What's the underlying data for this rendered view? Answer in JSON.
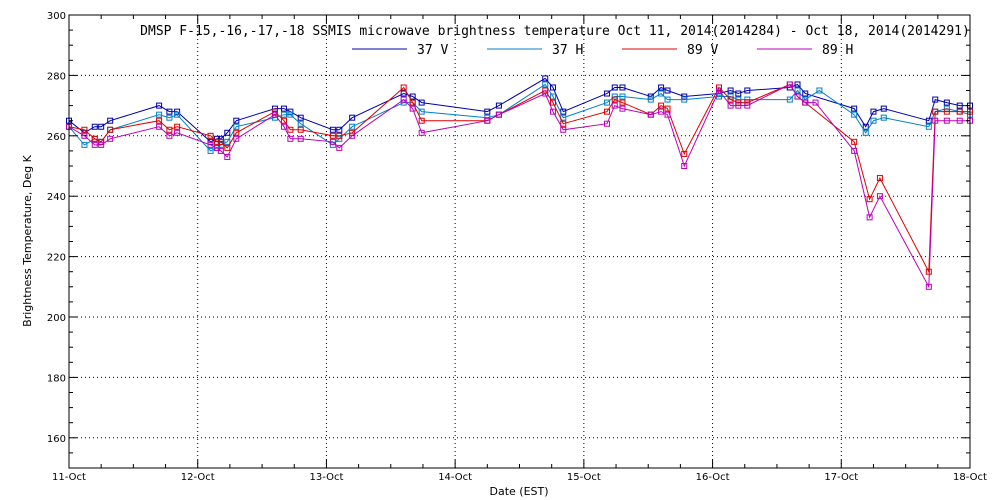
{
  "chart_data": {
    "type": "line",
    "title": "DMSP F-15,-16,-17,-18 SSMIS microwave brightness temperature Oct 11, 2014(2014284) - Oct 18, 2014(2014291)",
    "xlabel": "Date (EST)",
    "ylabel": "Brightness Temperature, Deg K",
    "xlim": [
      11.0,
      18.0
    ],
    "ylim": [
      150,
      300
    ],
    "x_ticks": [
      {
        "value": 11,
        "label": "11-Oct"
      },
      {
        "value": 12,
        "label": "12-Oct"
      },
      {
        "value": 13,
        "label": "13-Oct"
      },
      {
        "value": 14,
        "label": "14-Oct"
      },
      {
        "value": 15,
        "label": "15-Oct"
      },
      {
        "value": 16,
        "label": "16-Oct"
      },
      {
        "value": 17,
        "label": "17-Oct"
      },
      {
        "value": 18,
        "label": "18-Oct"
      }
    ],
    "y_ticks": [
      160,
      180,
      200,
      220,
      240,
      260,
      280,
      300
    ],
    "grid": true,
    "legend_position": "top-center",
    "series": [
      {
        "name": "37 V",
        "color": "#0000aa",
        "points": [
          [
            11.0,
            265
          ],
          [
            11.12,
            261
          ],
          [
            11.2,
            263
          ],
          [
            11.25,
            263
          ],
          [
            11.32,
            265
          ],
          [
            11.7,
            270
          ],
          [
            11.78,
            268
          ],
          [
            11.84,
            268
          ],
          [
            12.1,
            258
          ],
          [
            12.15,
            259
          ],
          [
            12.18,
            259
          ],
          [
            12.23,
            261
          ],
          [
            12.3,
            265
          ],
          [
            12.6,
            269
          ],
          [
            12.67,
            269
          ],
          [
            12.72,
            268
          ],
          [
            12.8,
            266
          ],
          [
            13.05,
            262
          ],
          [
            13.1,
            262
          ],
          [
            13.2,
            266
          ],
          [
            13.6,
            274
          ],
          [
            13.67,
            273
          ],
          [
            13.74,
            271
          ],
          [
            14.25,
            268
          ],
          [
            14.34,
            270
          ],
          [
            14.7,
            279
          ],
          [
            14.76,
            276
          ],
          [
            14.84,
            268
          ],
          [
            15.18,
            274
          ],
          [
            15.24,
            276
          ],
          [
            15.3,
            276
          ],
          [
            15.52,
            273
          ],
          [
            15.6,
            276
          ],
          [
            15.65,
            275
          ],
          [
            15.78,
            273
          ],
          [
            16.05,
            274
          ],
          [
            16.14,
            275
          ],
          [
            16.2,
            274
          ],
          [
            16.27,
            275
          ],
          [
            16.6,
            276
          ],
          [
            16.66,
            277
          ],
          [
            16.72,
            274
          ],
          [
            17.1,
            269
          ],
          [
            17.19,
            263
          ],
          [
            17.25,
            268
          ],
          [
            17.33,
            269
          ],
          [
            17.68,
            265
          ],
          [
            17.73,
            272
          ],
          [
            17.82,
            271
          ],
          [
            17.92,
            270
          ],
          [
            18.0,
            270
          ]
        ]
      },
      {
        "name": "37 H",
        "color": "#0080c8",
        "points": [
          [
            11.0,
            263
          ],
          [
            11.12,
            257
          ],
          [
            11.2,
            259
          ],
          [
            11.25,
            258
          ],
          [
            11.32,
            262
          ],
          [
            11.7,
            267
          ],
          [
            11.78,
            266
          ],
          [
            11.84,
            267
          ],
          [
            12.1,
            255
          ],
          [
            12.15,
            256
          ],
          [
            12.18,
            257
          ],
          [
            12.23,
            258
          ],
          [
            12.3,
            263
          ],
          [
            12.6,
            266
          ],
          [
            12.67,
            267
          ],
          [
            12.72,
            267
          ],
          [
            12.8,
            264
          ],
          [
            13.05,
            257
          ],
          [
            13.1,
            259
          ],
          [
            13.2,
            263
          ],
          [
            13.6,
            271
          ],
          [
            13.67,
            271
          ],
          [
            13.74,
            268
          ],
          [
            14.25,
            266
          ],
          [
            14.34,
            267
          ],
          [
            14.7,
            277
          ],
          [
            14.76,
            273
          ],
          [
            14.84,
            266
          ],
          [
            15.18,
            271
          ],
          [
            15.24,
            273
          ],
          [
            15.3,
            273
          ],
          [
            15.52,
            272
          ],
          [
            15.6,
            274
          ],
          [
            15.65,
            272
          ],
          [
            15.78,
            272
          ],
          [
            16.05,
            273
          ],
          [
            16.14,
            273
          ],
          [
            16.2,
            272
          ],
          [
            16.27,
            272
          ],
          [
            16.6,
            272
          ],
          [
            16.66,
            275
          ],
          [
            16.72,
            272
          ],
          [
            16.83,
            275
          ],
          [
            17.1,
            267
          ],
          [
            17.19,
            261
          ],
          [
            17.25,
            265
          ],
          [
            17.33,
            266
          ],
          [
            17.68,
            263
          ],
          [
            17.73,
            268
          ],
          [
            17.82,
            269
          ],
          [
            17.92,
            268
          ],
          [
            18.0,
            267
          ]
        ]
      },
      {
        "name": "89 V",
        "color": "#dd0000",
        "points": [
          [
            11.0,
            263
          ],
          [
            11.12,
            262
          ],
          [
            11.2,
            259
          ],
          [
            11.25,
            258
          ],
          [
            11.32,
            262
          ],
          [
            11.7,
            265
          ],
          [
            11.78,
            262
          ],
          [
            11.84,
            263
          ],
          [
            12.1,
            260
          ],
          [
            12.15,
            258
          ],
          [
            12.18,
            258
          ],
          [
            12.23,
            256
          ],
          [
            12.3,
            261
          ],
          [
            12.6,
            268
          ],
          [
            12.67,
            265
          ],
          [
            12.72,
            262
          ],
          [
            12.8,
            262
          ],
          [
            13.05,
            260
          ],
          [
            13.1,
            260
          ],
          [
            13.2,
            261
          ],
          [
            13.6,
            276
          ],
          [
            13.67,
            271
          ],
          [
            13.74,
            265
          ],
          [
            14.25,
            265
          ],
          [
            14.34,
            267
          ],
          [
            14.7,
            275
          ],
          [
            14.76,
            271
          ],
          [
            14.84,
            264
          ],
          [
            15.18,
            268
          ],
          [
            15.24,
            272
          ],
          [
            15.3,
            271
          ],
          [
            15.52,
            267
          ],
          [
            15.6,
            270
          ],
          [
            15.65,
            269
          ],
          [
            15.78,
            254
          ],
          [
            16.05,
            276
          ],
          [
            16.14,
            272
          ],
          [
            16.2,
            271
          ],
          [
            16.27,
            271
          ],
          [
            16.6,
            277
          ],
          [
            16.66,
            273
          ],
          [
            16.72,
            271
          ],
          [
            17.1,
            258
          ],
          [
            17.22,
            239
          ],
          [
            17.3,
            246
          ],
          [
            17.68,
            215
          ],
          [
            17.73,
            268
          ],
          [
            17.82,
            268
          ],
          [
            17.92,
            268
          ],
          [
            18.0,
            268
          ]
        ]
      },
      {
        "name": "89 H",
        "color": "#bb00bb",
        "points": [
          [
            11.0,
            263
          ],
          [
            11.12,
            260
          ],
          [
            11.2,
            257
          ],
          [
            11.25,
            257
          ],
          [
            11.32,
            259
          ],
          [
            11.7,
            263
          ],
          [
            11.78,
            260
          ],
          [
            11.84,
            261
          ],
          [
            12.1,
            257
          ],
          [
            12.15,
            256
          ],
          [
            12.18,
            255
          ],
          [
            12.23,
            253
          ],
          [
            12.3,
            259
          ],
          [
            12.6,
            267
          ],
          [
            12.67,
            263
          ],
          [
            12.72,
            259
          ],
          [
            12.8,
            259
          ],
          [
            13.05,
            258
          ],
          [
            13.1,
            256
          ],
          [
            13.2,
            260
          ],
          [
            13.6,
            272
          ],
          [
            13.67,
            269
          ],
          [
            13.74,
            261
          ],
          [
            14.25,
            265
          ],
          [
            14.34,
            267
          ],
          [
            14.7,
            274
          ],
          [
            14.76,
            268
          ],
          [
            14.84,
            262
          ],
          [
            15.18,
            264
          ],
          [
            15.24,
            270
          ],
          [
            15.3,
            269
          ],
          [
            15.52,
            267
          ],
          [
            15.6,
            268
          ],
          [
            15.65,
            267
          ],
          [
            15.78,
            250
          ],
          [
            16.05,
            275
          ],
          [
            16.14,
            270
          ],
          [
            16.2,
            270
          ],
          [
            16.27,
            270
          ],
          [
            16.6,
            277
          ],
          [
            16.66,
            273
          ],
          [
            16.72,
            271
          ],
          [
            16.8,
            271
          ],
          [
            17.1,
            255
          ],
          [
            17.22,
            233
          ],
          [
            17.3,
            240
          ],
          [
            17.68,
            210
          ],
          [
            17.73,
            265
          ],
          [
            17.82,
            265
          ],
          [
            17.92,
            265
          ],
          [
            18.0,
            265
          ]
        ]
      }
    ]
  }
}
